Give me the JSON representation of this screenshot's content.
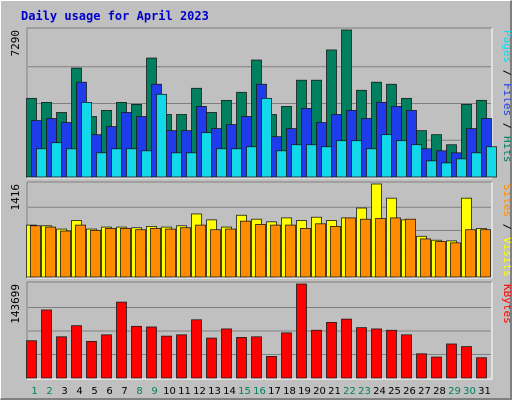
{
  "chart_data": [
    {
      "type": "bar",
      "title": "Daily usage for April 2023",
      "categories": [
        "1",
        "2",
        "3",
        "4",
        "5",
        "6",
        "7",
        "8",
        "9",
        "10",
        "11",
        "12",
        "13",
        "14",
        "15",
        "16",
        "17",
        "18",
        "19",
        "20",
        "21",
        "22",
        "23",
        "24",
        "25",
        "26",
        "27",
        "28",
        "29",
        "30",
        "31"
      ],
      "weekend_days": [
        "1",
        "2",
        "8",
        "9",
        "15",
        "16",
        "22",
        "23",
        "29",
        "30"
      ],
      "y_tick_label": "7290",
      "ylim": [
        0,
        7290
      ],
      "right_label_parts": [
        "Pages",
        "Files",
        "Hits"
      ],
      "series": [
        {
          "name": "Hits",
          "color": "#00805f",
          "values": [
            3900,
            3700,
            3200,
            5400,
            3000,
            3300,
            3700,
            3600,
            5900,
            3100,
            3100,
            4400,
            3200,
            3800,
            4200,
            5800,
            3100,
            3500,
            4800,
            4800,
            6300,
            7290,
            4300,
            4700,
            4600,
            3900,
            2300,
            2100,
            1600,
            3600,
            3800
          ]
        },
        {
          "name": "Files",
          "color": "#1f3cea",
          "values": [
            2800,
            2900,
            2700,
            4700,
            2100,
            2500,
            3200,
            3000,
            4600,
            2300,
            2300,
            3500,
            2400,
            2600,
            3000,
            4600,
            2000,
            2400,
            3400,
            2700,
            3100,
            3300,
            2900,
            3700,
            3500,
            3300,
            1400,
            1300,
            1200,
            2400,
            2900
          ]
        },
        {
          "name": "Pages",
          "color": "#11d9e8",
          "values": [
            1400,
            1700,
            1400,
            3700,
            1200,
            1400,
            1400,
            1300,
            4100,
            1200,
            1200,
            2200,
            1400,
            1400,
            1500,
            3900,
            1300,
            1600,
            1600,
            1500,
            1800,
            1800,
            1400,
            2100,
            1800,
            1600,
            800,
            700,
            900,
            1200,
            1500
          ]
        }
      ]
    },
    {
      "type": "bar",
      "categories": [
        "1",
        "2",
        "3",
        "4",
        "5",
        "6",
        "7",
        "8",
        "9",
        "10",
        "11",
        "12",
        "13",
        "14",
        "15",
        "16",
        "17",
        "18",
        "19",
        "20",
        "21",
        "22",
        "23",
        "24",
        "25",
        "26",
        "27",
        "28",
        "29",
        "30",
        "31"
      ],
      "y_tick_label": "1416",
      "ylim": [
        0,
        1416
      ],
      "right_label_parts": [
        "Sites",
        "Visits"
      ],
      "series": [
        {
          "name": "Visits",
          "color": "#ffff00",
          "values": [
            790,
            780,
            730,
            860,
            730,
            760,
            760,
            750,
            770,
            760,
            780,
            960,
            870,
            760,
            940,
            880,
            840,
            900,
            860,
            910,
            860,
            900,
            1050,
            1416,
            1200,
            870,
            620,
            560,
            550,
            1200,
            740
          ]
        },
        {
          "name": "Sites",
          "color": "#ff8c00",
          "values": [
            780,
            760,
            700,
            790,
            710,
            740,
            740,
            720,
            740,
            730,
            750,
            790,
            720,
            730,
            850,
            800,
            790,
            790,
            740,
            810,
            770,
            900,
            880,
            890,
            900,
            880,
            580,
            540,
            520,
            720,
            720
          ]
        }
      ]
    },
    {
      "type": "bar",
      "categories": [
        "1",
        "2",
        "3",
        "4",
        "5",
        "6",
        "7",
        "8",
        "9",
        "10",
        "11",
        "12",
        "13",
        "14",
        "15",
        "16",
        "17",
        "18",
        "19",
        "20",
        "21",
        "22",
        "23",
        "24",
        "25",
        "26",
        "27",
        "28",
        "29",
        "30",
        "31"
      ],
      "y_tick_label": "143699",
      "ylim": [
        0,
        143699
      ],
      "right_label_parts": [
        "KBytes"
      ],
      "series": [
        {
          "name": "KBytes",
          "color": "#ff0000",
          "values": [
            57000,
            104000,
            63000,
            80000,
            56000,
            66000,
            116000,
            79000,
            78000,
            64000,
            66000,
            89000,
            61000,
            75000,
            62000,
            63000,
            33000,
            69000,
            143699,
            73000,
            85000,
            90000,
            77000,
            75000,
            73000,
            66000,
            37000,
            32000,
            52000,
            48000,
            31000
          ]
        }
      ]
    }
  ]
}
